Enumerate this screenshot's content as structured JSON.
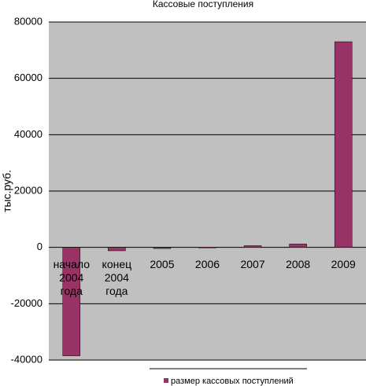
{
  "chart_data": {
    "type": "bar",
    "title": "Кассовые поступления",
    "y_label": "тыс.руб.",
    "categories": [
      "начало 2004 года",
      "конец 2004 года",
      "2005",
      "2006",
      "2007",
      "2008",
      "2009"
    ],
    "series": [
      {
        "name": "размер кассовых поступлений",
        "color": "#993366",
        "values": [
          -38500,
          -1200,
          -400,
          100,
          600,
          1200,
          73000
        ]
      }
    ],
    "ylim": [
      -40000,
      80000
    ],
    "yticks": [
      -40000,
      -20000,
      0,
      20000,
      40000,
      60000,
      80000
    ],
    "grid": true
  }
}
